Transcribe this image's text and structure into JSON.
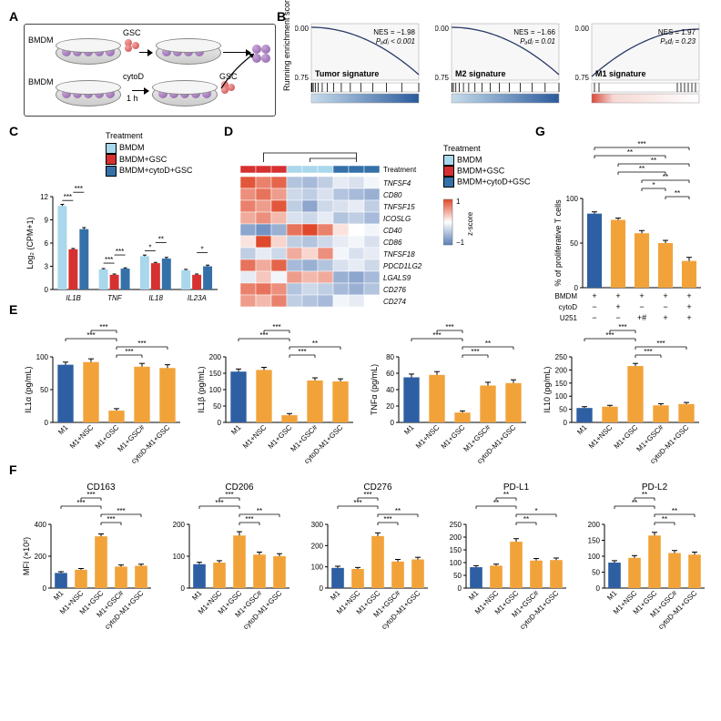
{
  "colors": {
    "blue": "#2e5fa3",
    "orange": "#f1a33a",
    "lightblue": "#a9d7ec",
    "red": "#d73030",
    "darkblue": "#3571a8",
    "heatmap_high": "#e0492b",
    "heatmap_mid": "#ffffff",
    "heatmap_low": "#5b7fb8",
    "panelA_dish": "#c6a6c9",
    "gsea_line": "#2b3a67"
  },
  "panelA": {
    "labels": [
      "BMDM",
      "BMDM",
      "GSC",
      "cytoD",
      "GSC",
      "1 h"
    ]
  },
  "panelB": {
    "plots": [
      {
        "title": "Tumor signature",
        "nes": "NES = −1.98",
        "padj": "Pₐdⱼ < 0.001",
        "curve_dir": "down"
      },
      {
        "title": "M2 signature",
        "nes": "NES = −1.66",
        "padj": "Pₐdⱼ = 0.01",
        "curve_dir": "down"
      },
      {
        "title": "M1 signature",
        "nes": "NES = 1.97",
        "padj": "Pₐdⱼ = 0.23",
        "curve_dir": "up"
      }
    ],
    "ylabel": "Running enrichment score",
    "yticks": [
      "0.00",
      "−0.75"
    ]
  },
  "panelC": {
    "ylabel": "Log₂ (CPM+1)",
    "legend_title": "Treatment",
    "legend": [
      "BMDM",
      "BMDM+GSC",
      "BMDM+cytoD+GSC"
    ],
    "legend_colors": [
      "#a9d7ec",
      "#d73030",
      "#3571a8"
    ],
    "genes": [
      "IL1B",
      "TNF",
      "IL18",
      "IL23A"
    ],
    "values": [
      [
        10.8,
        5.2,
        7.8
      ],
      [
        2.6,
        1.9,
        2.7
      ],
      [
        4.3,
        3.4,
        4.0
      ],
      [
        2.5,
        1.9,
        3.0
      ]
    ],
    "errors": [
      [
        0.2,
        0.1,
        0.2
      ],
      [
        0.1,
        0.1,
        0.1
      ],
      [
        0.15,
        0.1,
        0.15
      ],
      [
        0.1,
        0.1,
        0.15
      ]
    ],
    "sig": [
      [
        "***",
        "***"
      ],
      [
        "***",
        "***"
      ],
      [
        "*",
        "**"
      ],
      [
        "",
        "*"
      ]
    ],
    "ylim": [
      0,
      12
    ],
    "ytick_step": 3
  },
  "panelD": {
    "col_group_colors": [
      "#d73030",
      "#d73030",
      "#d73030",
      "#a9d7ec",
      "#a9d7ec",
      "#a9d7ec",
      "#3571a8",
      "#3571a8",
      "#3571a8"
    ],
    "col_legend_title": "Treatment",
    "col_legend": [
      "BMDM",
      "BMDM+GSC",
      "BMDM+cytoD+GSC"
    ],
    "zscale_label": "z-score",
    "zscale_ticks": [
      "1",
      "−1"
    ],
    "row_labels": [
      "TNFSF4",
      "CD80",
      "TNFSF15",
      "ICOSLG",
      "CD40",
      "CD86",
      "TNFSF18",
      "PDCD1LG2",
      "LGALS9",
      "CD276",
      "CD274"
    ],
    "matrix": [
      [
        1.2,
        0.9,
        1.1,
        -0.6,
        -0.7,
        -0.5,
        -0.2,
        -0.3,
        -0.1
      ],
      [
        0.8,
        1.0,
        0.7,
        -0.4,
        -0.5,
        -0.3,
        -0.6,
        -0.7,
        -0.8
      ],
      [
        0.9,
        0.7,
        1.2,
        -0.5,
        -0.9,
        -0.4,
        -0.3,
        -0.2,
        -0.5
      ],
      [
        0.6,
        0.8,
        0.5,
        -0.3,
        -0.4,
        -0.2,
        -0.6,
        -0.5,
        -0.7
      ],
      [
        -0.9,
        -1.1,
        -0.8,
        1.0,
        1.3,
        0.9,
        0.2,
        0.0,
        -0.1
      ],
      [
        0.2,
        1.4,
        0.3,
        -0.5,
        -0.6,
        -0.4,
        -0.2,
        -0.1,
        -0.3
      ],
      [
        -0.5,
        -0.2,
        -0.4,
        0.6,
        0.3,
        0.8,
        -0.1,
        -0.3,
        -0.2
      ],
      [
        1.0,
        0.6,
        1.1,
        -0.7,
        -0.8,
        -0.6,
        -0.3,
        -0.2,
        -0.4
      ],
      [
        -0.2,
        0.4,
        -0.1,
        0.7,
        0.5,
        0.6,
        -0.8,
        -0.9,
        -0.7
      ],
      [
        0.9,
        1.0,
        0.8,
        -0.6,
        -0.4,
        -0.5,
        -0.7,
        -0.8,
        -0.6
      ],
      [
        0.7,
        0.5,
        0.9,
        -0.5,
        -0.6,
        -0.7,
        -0.1,
        -0.2,
        0.0
      ]
    ]
  },
  "panelE": {
    "xlabels": [
      "M1",
      "M1+NSC",
      "M1+GSC",
      "M1+GSC#",
      "cytoD-M1+GSC"
    ],
    "bar_colors": [
      "#2e5fa3",
      "#f1a33a",
      "#f1a33a",
      "#f1a33a",
      "#f1a33a"
    ],
    "charts": [
      {
        "ylabel": "IL1α (pg/mL)",
        "ylim": [
          0,
          100
        ],
        "ytick": 50,
        "values": [
          88,
          92,
          18,
          85,
          83
        ],
        "err": [
          4,
          5,
          3,
          5,
          5
        ],
        "sig": [
          [
            0,
            2,
            "***"
          ],
          [
            1,
            2,
            "***"
          ],
          [
            2,
            3,
            "***"
          ],
          [
            2,
            4,
            "***"
          ]
        ]
      },
      {
        "ylabel": "IL1β (pg/mL)",
        "ylim": [
          0,
          200
        ],
        "ytick": 50,
        "values": [
          155,
          160,
          22,
          128,
          125
        ],
        "err": [
          8,
          8,
          5,
          8,
          8
        ],
        "sig": [
          [
            0,
            2,
            "***"
          ],
          [
            1,
            2,
            "***"
          ],
          [
            2,
            3,
            "***"
          ],
          [
            2,
            4,
            "**"
          ]
        ]
      },
      {
        "ylabel": "TNFα (pg/mL)",
        "ylim": [
          0,
          80
        ],
        "ytick": 20,
        "values": [
          55,
          58,
          12,
          45,
          48
        ],
        "err": [
          4,
          4,
          2,
          4,
          4
        ],
        "sig": [
          [
            0,
            2,
            "***"
          ],
          [
            1,
            2,
            "***"
          ],
          [
            2,
            3,
            "***"
          ],
          [
            2,
            4,
            "**"
          ]
        ]
      },
      {
        "ylabel": "IL10 (pg/mL)",
        "ylim": [
          0,
          250
        ],
        "ytick": 50,
        "values": [
          55,
          60,
          215,
          65,
          70
        ],
        "err": [
          5,
          5,
          10,
          6,
          6
        ],
        "sig": [
          [
            0,
            2,
            "***"
          ],
          [
            1,
            2,
            "***"
          ],
          [
            2,
            3,
            "***"
          ],
          [
            2,
            4,
            "***"
          ]
        ]
      }
    ]
  },
  "panelF": {
    "xlabels": [
      "M1",
      "M1+NSC",
      "M1+GSC",
      "M1+GSC#",
      "cytoD-M1+GSC"
    ],
    "bar_colors": [
      "#2e5fa3",
      "#f1a33a",
      "#f1a33a",
      "#f1a33a",
      "#f1a33a"
    ],
    "charts": [
      {
        "title": "CD163",
        "ylabel": "MFI (×10²)",
        "ylim": [
          0,
          400
        ],
        "ytick": 200,
        "values": [
          95,
          115,
          325,
          135,
          140
        ],
        "err": [
          8,
          8,
          15,
          10,
          10
        ],
        "sig": [
          [
            0,
            2,
            "***"
          ],
          [
            1,
            2,
            "***"
          ],
          [
            2,
            3,
            "***"
          ],
          [
            2,
            4,
            "***"
          ]
        ]
      },
      {
        "title": "CD206",
        "ylabel": "",
        "ylim": [
          0,
          200
        ],
        "ytick": 100,
        "values": [
          75,
          80,
          165,
          105,
          100
        ],
        "err": [
          6,
          6,
          12,
          8,
          8
        ],
        "sig": [
          [
            0,
            2,
            "***"
          ],
          [
            1,
            2,
            "***"
          ],
          [
            2,
            3,
            "***"
          ],
          [
            2,
            4,
            "**"
          ]
        ]
      },
      {
        "title": "CD276",
        "ylabel": "",
        "ylim": [
          0,
          300
        ],
        "ytick": 100,
        "values": [
          95,
          90,
          245,
          125,
          135
        ],
        "err": [
          8,
          7,
          15,
          10,
          10
        ],
        "sig": [
          [
            0,
            2,
            "***"
          ],
          [
            1,
            2,
            "***"
          ],
          [
            2,
            3,
            "***"
          ],
          [
            2,
            4,
            "**"
          ]
        ]
      },
      {
        "title": "PD-L1",
        "ylabel": "",
        "ylim": [
          0,
          250
        ],
        "ytick": 50,
        "values": [
          82,
          88,
          182,
          108,
          110
        ],
        "err": [
          6,
          6,
          12,
          8,
          8
        ],
        "sig": [
          [
            0,
            2,
            "**"
          ],
          [
            1,
            2,
            "**"
          ],
          [
            2,
            3,
            "**"
          ],
          [
            2,
            4,
            "*"
          ]
        ]
      },
      {
        "title": "PD-L2",
        "ylabel": "",
        "ylim": [
          0,
          200
        ],
        "ytick": 50,
        "values": [
          80,
          95,
          165,
          110,
          105
        ],
        "err": [
          6,
          7,
          10,
          8,
          8
        ],
        "sig": [
          [
            0,
            2,
            "**"
          ],
          [
            1,
            2,
            "**"
          ],
          [
            2,
            3,
            "**"
          ],
          [
            2,
            4,
            "**"
          ]
        ]
      }
    ]
  },
  "panelG": {
    "ylabel": "% of proliferative T cells",
    "ylim": [
      0,
      100
    ],
    "ytick": 50,
    "bar_colors": [
      "#2e5fa3",
      "#f1a33a",
      "#f1a33a",
      "#f1a33a",
      "#f1a33a"
    ],
    "values": [
      83,
      76,
      61,
      50,
      30
    ],
    "err": [
      2,
      2,
      3,
      3,
      4
    ],
    "sig": [
      [
        0,
        3,
        "**"
      ],
      [
        0,
        4,
        "***"
      ],
      [
        1,
        3,
        "**"
      ],
      [
        1,
        4,
        "**"
      ],
      [
        2,
        3,
        "*"
      ],
      [
        2,
        4,
        "**"
      ],
      [
        3,
        4,
        "**"
      ]
    ],
    "row_labels": [
      "BMDM",
      "cytoD",
      "U251"
    ],
    "conditions": [
      [
        "+",
        "+",
        "+",
        "+",
        "+"
      ],
      [
        "−",
        "+",
        "−",
        "−",
        "+"
      ],
      [
        "−",
        "−",
        "+#",
        "+",
        "+"
      ]
    ]
  }
}
